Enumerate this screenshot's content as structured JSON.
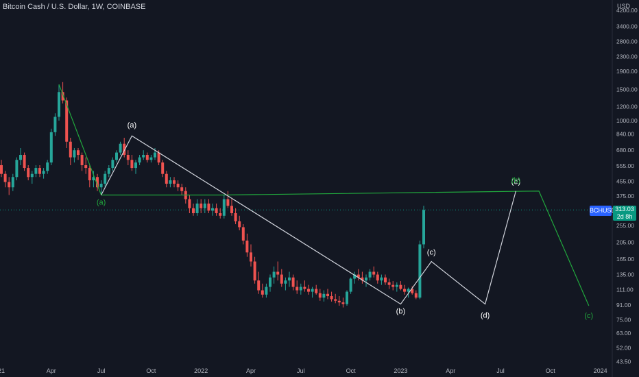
{
  "header": {
    "title": "Bitcoin Cash / U.S. Dollar, 1W, COINBASE"
  },
  "axis": {
    "currency_label": "USD"
  },
  "badge": {
    "ticker": "BCHUSD",
    "price": "313.03",
    "countdown": "2d 8h"
  },
  "colors": {
    "background": "#131722",
    "up": "#26a69a",
    "down": "#ef5350",
    "wave_green": "#21a83d",
    "wave_white": "#d1d4dc",
    "grid": "#1e222d",
    "text": "#b2b5be"
  },
  "chart_data": {
    "type": "candlestick",
    "title": "Bitcoin Cash / U.S. Dollar, 1W, COINBASE",
    "y_scale": "log",
    "ylim": [
      40,
      5000
    ],
    "y_ticks": [
      4200,
      3400,
      2800,
      2300,
      1900,
      1500,
      1200,
      1000,
      840,
      680,
      555,
      455,
      375,
      313,
      255,
      205,
      165,
      135,
      111,
      91,
      75,
      63,
      52,
      43.5
    ],
    "y_tick_labels": [
      "4200.00",
      "3400.00",
      "2800.00",
      "2300.00",
      "1900.00",
      "1500.00",
      "1200.00",
      "1000.00",
      "840.00",
      "680.00",
      "555.00",
      "455.00",
      "375.00",
      "",
      "255.00",
      "205.00",
      "165.00",
      "135.00",
      "111.00",
      "91.00",
      "75.00",
      "63.00",
      "52.00",
      "43.50"
    ],
    "x_ticks": [
      "21",
      "Apr",
      "Jul",
      "Oct",
      "2022",
      "Apr",
      "Jul",
      "Oct",
      "2023",
      "Apr",
      "Jul",
      "Oct",
      "2024"
    ],
    "x_tick_pos": [
      0,
      13,
      26,
      39,
      52,
      65,
      78,
      91,
      104,
      117,
      130,
      143,
      156
    ],
    "candles": [
      [
        0,
        560,
        600,
        480,
        500
      ],
      [
        1,
        500,
        520,
        420,
        450
      ],
      [
        2,
        450,
        480,
        380,
        420
      ],
      [
        3,
        420,
        500,
        400,
        480
      ],
      [
        4,
        480,
        620,
        460,
        600
      ],
      [
        5,
        600,
        700,
        560,
        640
      ],
      [
        6,
        640,
        660,
        520,
        540
      ],
      [
        7,
        540,
        560,
        460,
        480
      ],
      [
        8,
        480,
        520,
        440,
        500
      ],
      [
        9,
        500,
        560,
        480,
        540
      ],
      [
        10,
        540,
        560,
        480,
        500
      ],
      [
        11,
        500,
        540,
        470,
        520
      ],
      [
        12,
        520,
        600,
        500,
        580
      ],
      [
        13,
        580,
        900,
        560,
        860
      ],
      [
        14,
        860,
        1100,
        820,
        1050
      ],
      [
        15,
        1050,
        1600,
        1000,
        1450
      ],
      [
        16,
        1450,
        1650,
        1250,
        1300
      ],
      [
        17,
        1300,
        1350,
        700,
        760
      ],
      [
        18,
        760,
        800,
        560,
        620
      ],
      [
        19,
        620,
        700,
        580,
        680
      ],
      [
        20,
        680,
        700,
        600,
        640
      ],
      [
        21,
        640,
        660,
        520,
        560
      ],
      [
        22,
        560,
        620,
        500,
        540
      ],
      [
        23,
        540,
        560,
        420,
        460
      ],
      [
        24,
        460,
        520,
        420,
        480
      ],
      [
        25,
        480,
        500,
        400,
        420
      ],
      [
        26,
        420,
        460,
        380,
        440
      ],
      [
        27,
        440,
        520,
        420,
        500
      ],
      [
        28,
        500,
        560,
        480,
        540
      ],
      [
        29,
        540,
        620,
        520,
        600
      ],
      [
        30,
        600,
        680,
        580,
        660
      ],
      [
        31,
        660,
        760,
        640,
        740
      ],
      [
        32,
        740,
        800,
        620,
        640
      ],
      [
        33,
        640,
        680,
        560,
        600
      ],
      [
        34,
        600,
        640,
        520,
        540
      ],
      [
        35,
        540,
        600,
        500,
        580
      ],
      [
        36,
        580,
        640,
        560,
        620
      ],
      [
        37,
        620,
        680,
        600,
        640
      ],
      [
        38,
        640,
        660,
        580,
        600
      ],
      [
        39,
        600,
        640,
        580,
        620
      ],
      [
        40,
        620,
        700,
        600,
        660
      ],
      [
        41,
        660,
        680,
        560,
        580
      ],
      [
        42,
        580,
        600,
        480,
        500
      ],
      [
        43,
        500,
        520,
        420,
        440
      ],
      [
        44,
        440,
        480,
        420,
        460
      ],
      [
        45,
        460,
        480,
        420,
        440
      ],
      [
        46,
        440,
        460,
        400,
        420
      ],
      [
        47,
        420,
        440,
        380,
        400
      ],
      [
        48,
        400,
        420,
        340,
        360
      ],
      [
        49,
        360,
        380,
        300,
        320
      ],
      [
        50,
        320,
        340,
        290,
        300
      ],
      [
        51,
        300,
        360,
        290,
        340
      ],
      [
        52,
        340,
        360,
        300,
        320
      ],
      [
        53,
        320,
        360,
        300,
        340
      ],
      [
        54,
        340,
        360,
        300,
        310
      ],
      [
        55,
        310,
        340,
        290,
        320
      ],
      [
        56,
        320,
        340,
        290,
        300
      ],
      [
        57,
        300,
        320,
        280,
        290
      ],
      [
        58,
        290,
        380,
        280,
        360
      ],
      [
        59,
        360,
        400,
        320,
        330
      ],
      [
        60,
        330,
        360,
        290,
        300
      ],
      [
        61,
        300,
        320,
        260,
        270
      ],
      [
        62,
        270,
        290,
        240,
        250
      ],
      [
        63,
        250,
        260,
        200,
        210
      ],
      [
        64,
        210,
        230,
        170,
        180
      ],
      [
        65,
        180,
        200,
        150,
        160
      ],
      [
        66,
        160,
        170,
        120,
        125
      ],
      [
        67,
        125,
        140,
        105,
        110
      ],
      [
        68,
        110,
        120,
        100,
        104
      ],
      [
        69,
        104,
        120,
        100,
        115
      ],
      [
        70,
        115,
        135,
        108,
        130
      ],
      [
        71,
        130,
        150,
        120,
        140
      ],
      [
        72,
        140,
        160,
        125,
        135
      ],
      [
        73,
        135,
        145,
        115,
        120
      ],
      [
        74,
        120,
        130,
        110,
        125
      ],
      [
        75,
        125,
        140,
        115,
        130
      ],
      [
        76,
        130,
        135,
        110,
        115
      ],
      [
        77,
        115,
        125,
        105,
        110
      ],
      [
        78,
        110,
        120,
        104,
        115
      ],
      [
        79,
        115,
        125,
        108,
        112
      ],
      [
        80,
        112,
        118,
        104,
        108
      ],
      [
        81,
        108,
        115,
        100,
        112
      ],
      [
        82,
        112,
        118,
        104,
        106
      ],
      [
        83,
        106,
        112,
        96,
        100
      ],
      [
        84,
        100,
        110,
        95,
        105
      ],
      [
        85,
        105,
        112,
        98,
        102
      ],
      [
        86,
        102,
        108,
        95,
        98
      ],
      [
        87,
        98,
        105,
        93,
        96
      ],
      [
        88,
        96,
        102,
        90,
        94
      ],
      [
        89,
        94,
        100,
        88,
        92
      ],
      [
        90,
        92,
        110,
        90,
        108
      ],
      [
        91,
        108,
        130,
        105,
        128
      ],
      [
        92,
        128,
        140,
        120,
        135
      ],
      [
        93,
        135,
        145,
        125,
        130
      ],
      [
        94,
        130,
        140,
        120,
        125
      ],
      [
        95,
        125,
        135,
        115,
        130
      ],
      [
        96,
        130,
        145,
        125,
        140
      ],
      [
        97,
        140,
        150,
        130,
        135
      ],
      [
        98,
        135,
        140,
        120,
        125
      ],
      [
        99,
        125,
        135,
        118,
        130
      ],
      [
        100,
        130,
        135,
        118,
        122
      ],
      [
        101,
        122,
        128,
        112,
        118
      ],
      [
        102,
        118,
        124,
        110,
        115
      ],
      [
        103,
        115,
        122,
        108,
        118
      ],
      [
        104,
        118,
        124,
        110,
        112
      ],
      [
        105,
        112,
        118,
        104,
        108
      ],
      [
        106,
        108,
        114,
        100,
        112
      ],
      [
        107,
        112,
        116,
        104,
        106
      ],
      [
        108,
        106,
        110,
        98,
        100
      ],
      [
        109,
        100,
        210,
        98,
        200
      ],
      [
        110,
        200,
        330,
        190,
        313
      ]
    ],
    "wave_primary": {
      "color": "green",
      "x": [
        15,
        26,
        58,
        140,
        153
      ],
      "y": [
        1600,
        380,
        380,
        400,
        90
      ],
      "labels": [
        "(a)",
        "(b)",
        "(c)"
      ]
    },
    "wave_secondary": {
      "color": "white",
      "x": [
        26,
        34,
        104,
        112,
        126,
        134
      ],
      "y": [
        380,
        820,
        92,
        160,
        92,
        400
      ],
      "labels": [
        "(a)",
        "(b)",
        "(c)",
        "(d)",
        "(e)"
      ]
    }
  },
  "annotations": {
    "a_green": "(a)",
    "a_white": "(a)",
    "b_white": "(b)",
    "c_white": "(c)",
    "d_white": "(d)",
    "e_white": "(e)",
    "b_green": "(b)",
    "c_green": "(c)"
  }
}
